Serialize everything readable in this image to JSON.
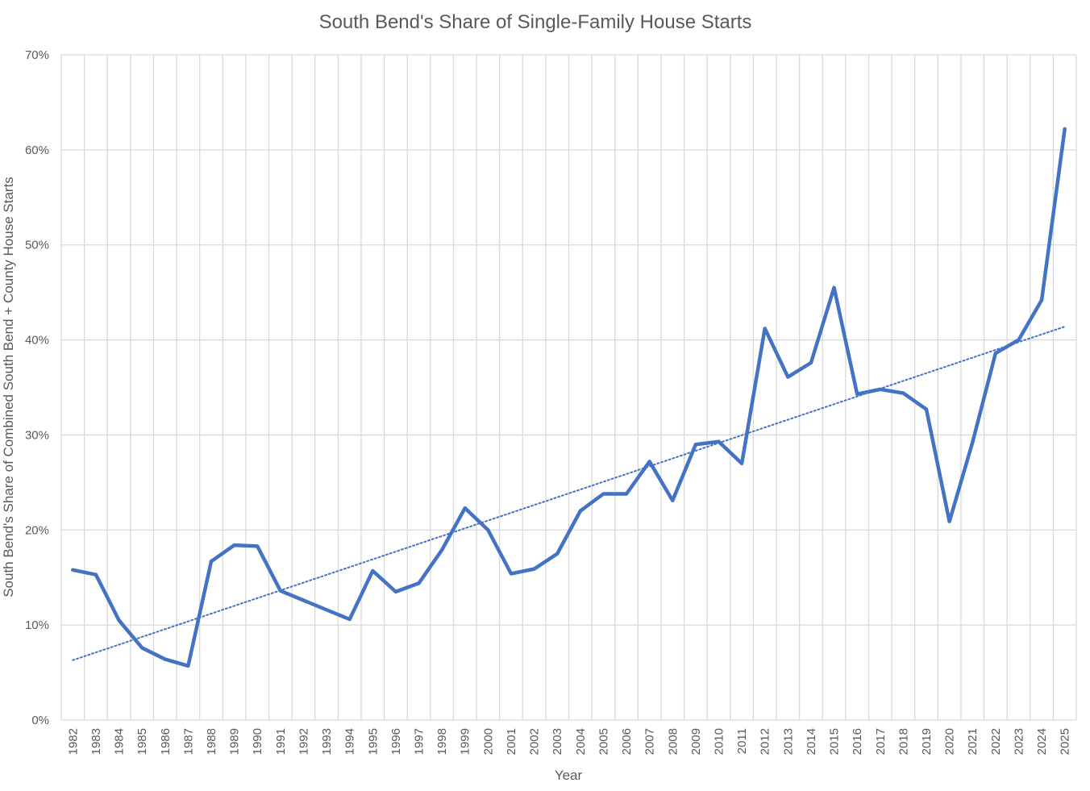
{
  "chart_data": {
    "type": "line",
    "title": "South Bend's Share of Single-Family House Starts",
    "xlabel": "Year",
    "ylabel": "South Bend's Share of Combined South Bend + County House Starts",
    "x": [
      "1982",
      "1983",
      "1984",
      "1985",
      "1986",
      "1987",
      "1988",
      "1989",
      "1990",
      "1991",
      "1992",
      "1993",
      "1994",
      "1995",
      "1996",
      "1997",
      "1998",
      "1999",
      "2000",
      "2001",
      "2002",
      "2003",
      "2004",
      "2005",
      "2006",
      "2007",
      "2008",
      "2009",
      "2010",
      "2011",
      "2012",
      "2013",
      "2014",
      "2015",
      "2016",
      "2017",
      "2018",
      "2019",
      "2020",
      "2021",
      "2022",
      "2023",
      "2024",
      "2025"
    ],
    "series": [
      {
        "values": [
          15.8,
          15.3,
          10.5,
          7.6,
          6.4,
          5.7,
          16.7,
          18.4,
          18.3,
          13.6,
          12.6,
          11.6,
          10.6,
          15.7,
          13.5,
          14.4,
          17.9,
          22.3,
          20.0,
          15.4,
          15.9,
          17.5,
          22.0,
          23.8,
          23.8,
          27.2,
          23.1,
          29.0,
          29.3,
          27.0,
          41.2,
          36.1,
          37.6,
          45.5,
          34.3,
          34.8,
          34.4,
          32.7,
          20.9,
          29.2,
          38.6,
          40.0,
          44.2,
          62.2
        ],
        "color": "#4472C4"
      }
    ],
    "trendline": {
      "type": "linear",
      "start": 6.3,
      "end": 41.4,
      "color": "#4472C4",
      "style": "dotted"
    },
    "ylim": [
      0,
      70
    ],
    "yticks": [
      0,
      10,
      20,
      30,
      40,
      50,
      60,
      70
    ],
    "ytick_format": "percent",
    "grid": {
      "horizontal": true,
      "vertical": true,
      "color": "#d9d9d9"
    }
  }
}
